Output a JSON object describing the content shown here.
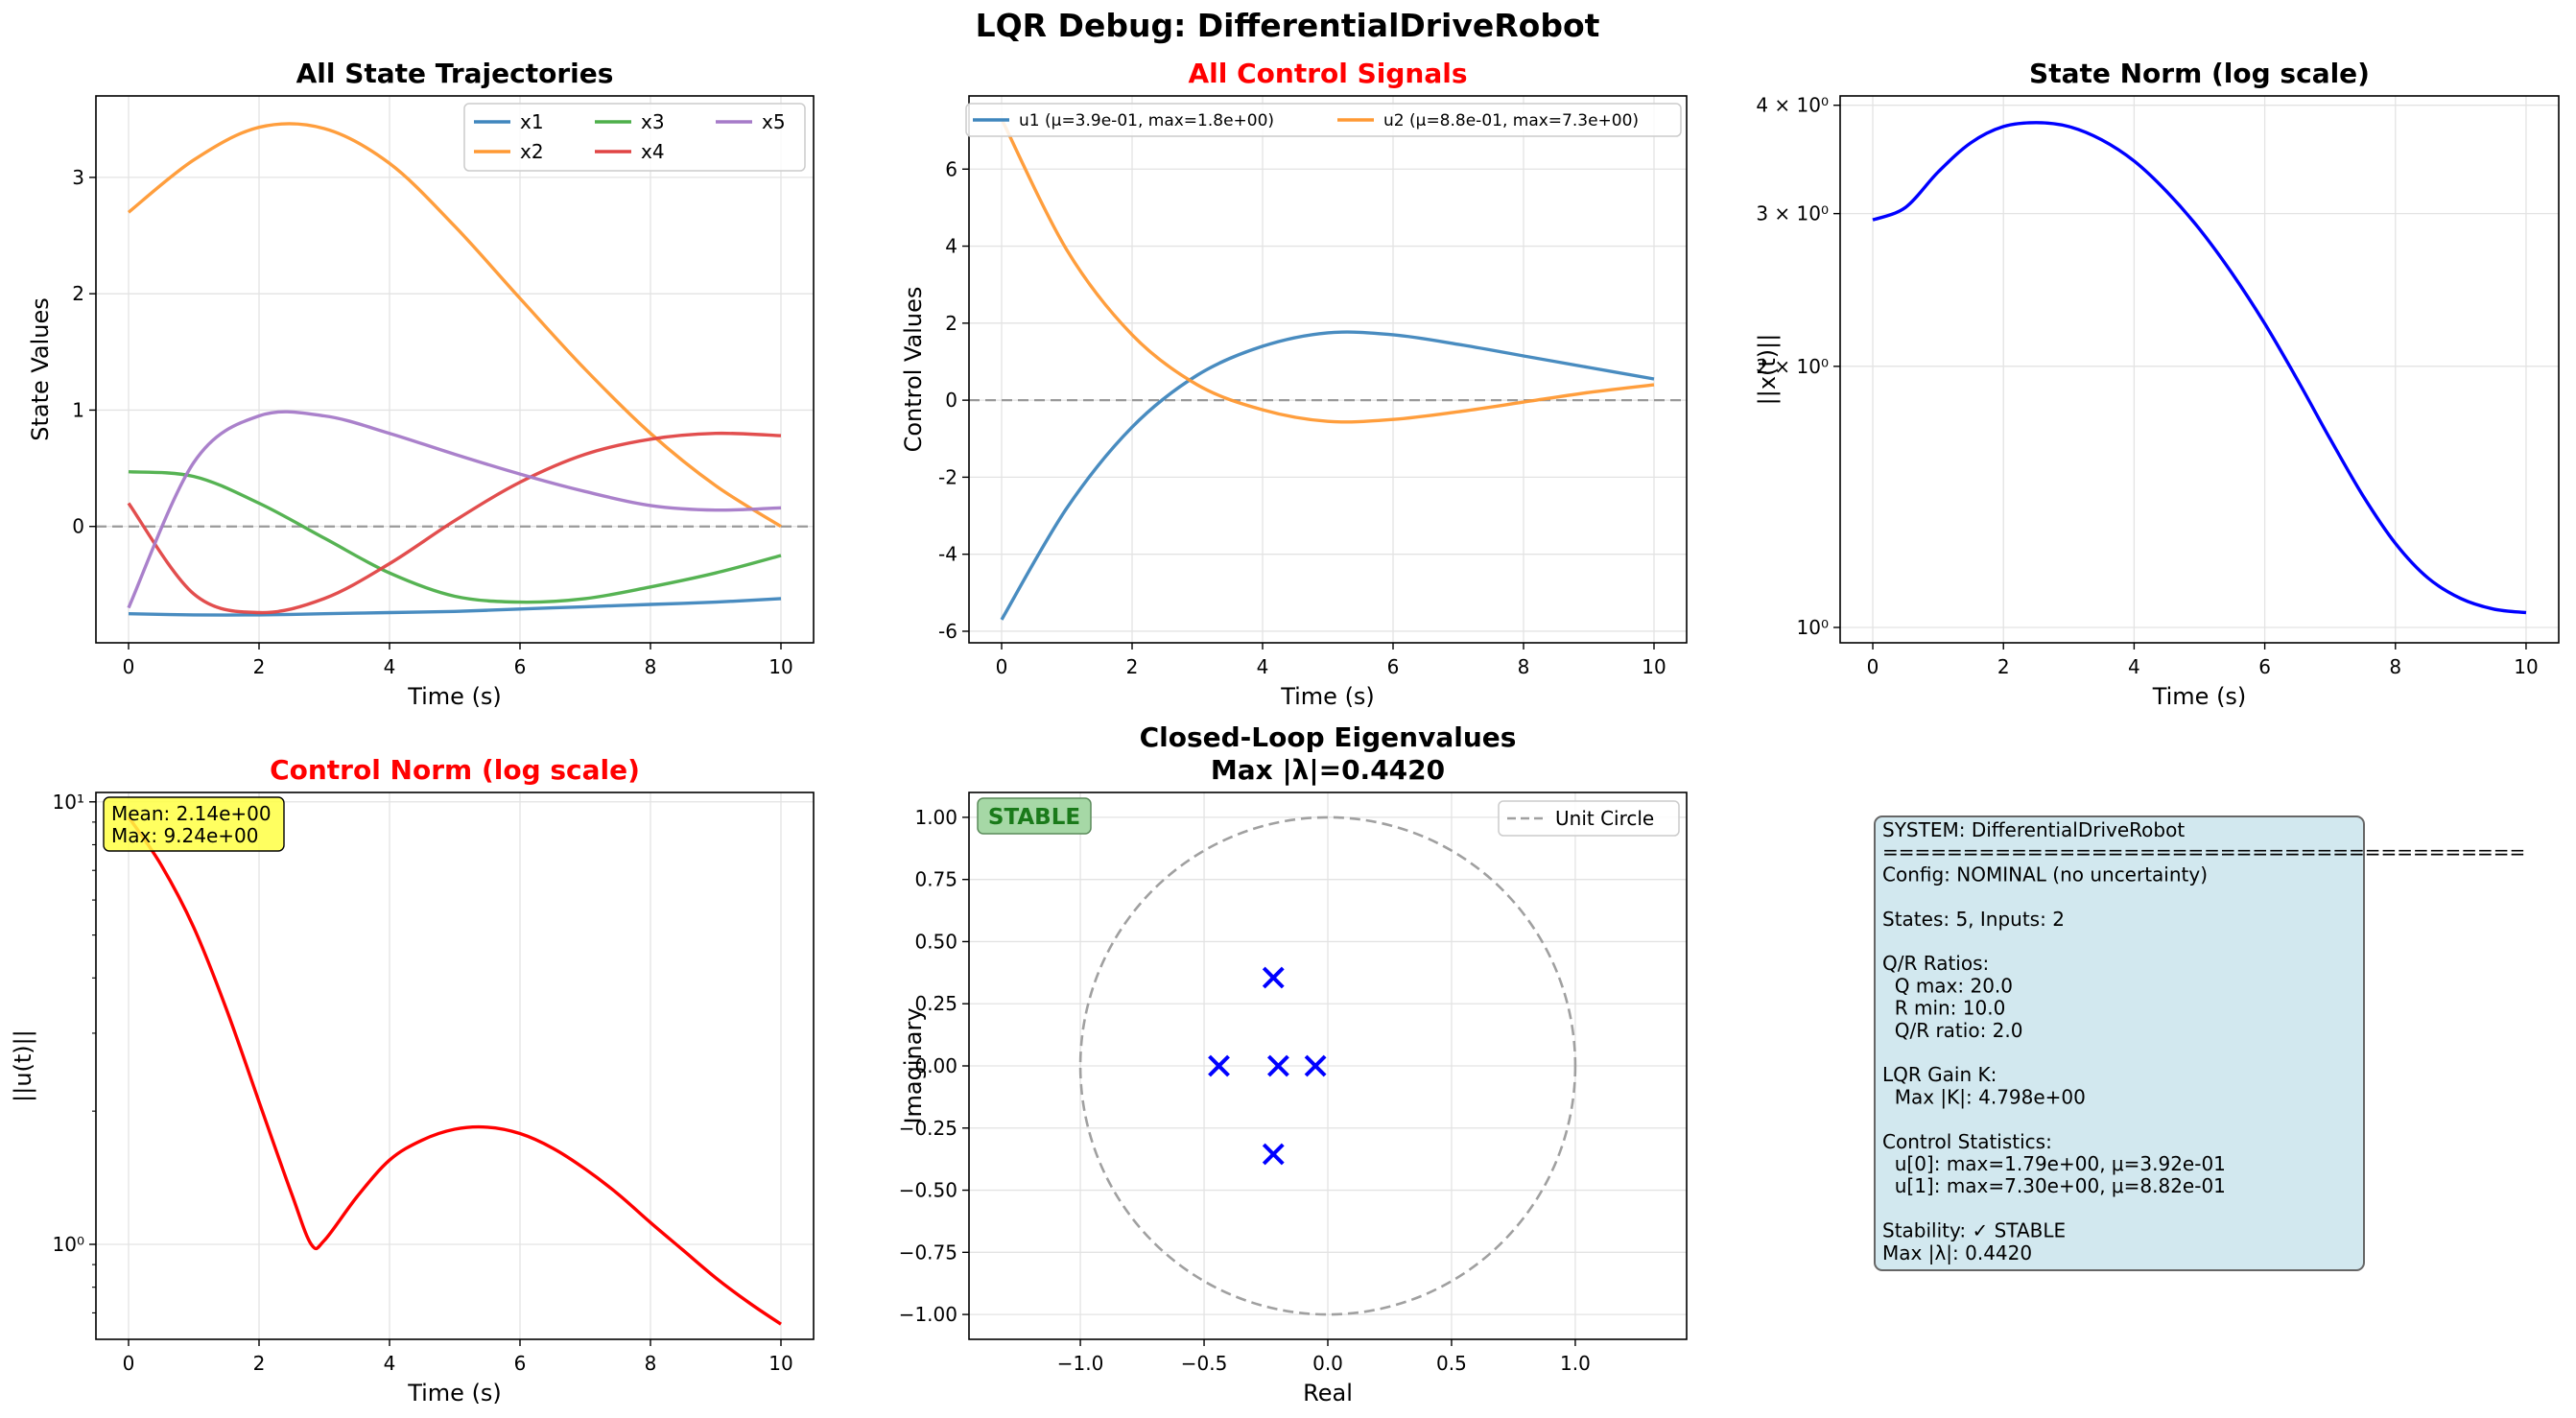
{
  "figure": {
    "suptitle": "LQR Debug: DifferentialDriveRobot"
  },
  "colors": {
    "x1": "#3f86bd",
    "x2": "#ff9933",
    "x3": "#4daf4a",
    "x4": "#e04444",
    "x5": "#a57ac8",
    "u1": "#3f86bd",
    "u2": "#ff9933",
    "norm_state": "#0000ff",
    "norm_control": "#ff0000",
    "eig_marker": "#0000ff",
    "title_red": "#ff0000",
    "stable_green": "#1a7a1a",
    "info_bg": "#d2e8ef"
  },
  "chart_data": [
    {
      "id": "state-trajectories",
      "type": "line",
      "title": "All State Trajectories",
      "xlabel": "Time (s)",
      "ylabel": "State Values",
      "xlim": [
        -0.5,
        10.5
      ],
      "ylim": [
        -1.0,
        3.7
      ],
      "xticks": [
        0,
        2,
        4,
        6,
        8,
        10
      ],
      "yticks": [
        0,
        1,
        2,
        3
      ],
      "grid": true,
      "legend": "top-right",
      "legend_columns": 3,
      "hline": 0,
      "x": [
        0,
        1,
        2,
        3,
        4,
        5,
        6,
        7,
        8,
        9,
        10
      ],
      "series": [
        {
          "name": "x1",
          "values": [
            -0.75,
            -0.76,
            -0.76,
            -0.75,
            -0.74,
            -0.73,
            -0.71,
            -0.69,
            -0.67,
            -0.65,
            -0.62
          ]
        },
        {
          "name": "x2",
          "values": [
            2.7,
            3.15,
            3.43,
            3.42,
            3.12,
            2.58,
            1.96,
            1.35,
            0.8,
            0.35,
            0.0
          ]
        },
        {
          "name": "x3",
          "values": [
            0.47,
            0.43,
            0.2,
            -0.1,
            -0.4,
            -0.6,
            -0.65,
            -0.62,
            -0.52,
            -0.4,
            -0.25
          ]
        },
        {
          "name": "x4",
          "values": [
            0.2,
            -0.58,
            -0.74,
            -0.62,
            -0.32,
            0.05,
            0.38,
            0.62,
            0.75,
            0.8,
            0.78
          ]
        },
        {
          "name": "x5",
          "values": [
            -0.7,
            0.55,
            0.95,
            0.95,
            0.8,
            0.62,
            0.45,
            0.3,
            0.18,
            0.14,
            0.16
          ]
        }
      ]
    },
    {
      "id": "control-signals",
      "type": "line",
      "title": "All Control Signals",
      "xlabel": "Time (s)",
      "ylabel": "Control Values",
      "xlim": [
        -0.5,
        10.5
      ],
      "ylim": [
        -6.3,
        7.9
      ],
      "xticks": [
        0,
        2,
        4,
        6,
        8,
        10
      ],
      "yticks": [
        -6,
        -4,
        -2,
        0,
        2,
        4,
        6
      ],
      "grid": true,
      "legend": "top",
      "legend_columns": 2,
      "hline": 0,
      "x": [
        0,
        1,
        2,
        3,
        4,
        5,
        6,
        7,
        8,
        9,
        10
      ],
      "series": [
        {
          "name": "u1 (μ=3.9e-01, max=1.8e+00)",
          "values": [
            -5.7,
            -2.8,
            -0.7,
            0.65,
            1.4,
            1.75,
            1.7,
            1.45,
            1.15,
            0.85,
            0.55
          ]
        },
        {
          "name": "u2 (μ=8.8e-01, max=7.3e+00)",
          "values": [
            7.3,
            3.9,
            1.7,
            0.4,
            -0.25,
            -0.55,
            -0.5,
            -0.3,
            -0.05,
            0.2,
            0.4
          ]
        }
      ]
    },
    {
      "id": "state-norm",
      "type": "line",
      "title": "State Norm (log scale)",
      "xlabel": "Time (s)",
      "ylabel": "||x(t)||",
      "yscale": "log",
      "xlim": [
        -0.5,
        10.5
      ],
      "ylim": [
        0.96,
        4.1
      ],
      "xticks": [
        0,
        2,
        4,
        6,
        8,
        10
      ],
      "ytick_labels": [
        "10⁰",
        "2 × 10⁰",
        "3 × 10⁰",
        "4 × 10⁰"
      ],
      "ytick_values": [
        1,
        2,
        3,
        4
      ],
      "grid": true,
      "x": [
        0,
        0.5,
        1,
        1.5,
        2,
        2.5,
        3,
        3.5,
        4,
        4.5,
        5,
        5.5,
        6,
        6.5,
        7,
        7.5,
        8,
        8.5,
        9,
        9.5,
        10
      ],
      "series": [
        {
          "name": "",
          "values": [
            2.95,
            3.05,
            3.35,
            3.62,
            3.78,
            3.82,
            3.78,
            3.65,
            3.45,
            3.18,
            2.88,
            2.56,
            2.24,
            1.93,
            1.65,
            1.42,
            1.25,
            1.14,
            1.08,
            1.05,
            1.04
          ]
        }
      ]
    },
    {
      "id": "control-norm",
      "type": "line",
      "title": "Control Norm (log scale)",
      "xlabel": "Time (s)",
      "ylabel": "||u(t)||",
      "yscale": "log",
      "xlim": [
        -0.5,
        10.5
      ],
      "ylim": [
        0.61,
        10.5
      ],
      "xticks": [
        0,
        2,
        4,
        6,
        8,
        10
      ],
      "ytick_labels": [
        "10⁰",
        "10¹"
      ],
      "ytick_values": [
        1,
        10
      ],
      "grid": true,
      "annotation": {
        "mean": "Mean: 2.14e+00",
        "max": "Max: 9.24e+00"
      },
      "x": [
        0,
        0.5,
        1,
        1.5,
        2,
        2.5,
        2.8,
        3,
        3.5,
        4,
        4.5,
        5,
        5.5,
        6,
        6.5,
        7,
        7.5,
        8,
        8.5,
        9,
        9.5,
        10
      ],
      "series": [
        {
          "name": "",
          "values": [
            9.24,
            7.2,
            5.2,
            3.4,
            2.1,
            1.3,
            1.0,
            1.02,
            1.28,
            1.55,
            1.72,
            1.82,
            1.84,
            1.78,
            1.65,
            1.48,
            1.3,
            1.12,
            0.97,
            0.84,
            0.74,
            0.66
          ]
        }
      ]
    },
    {
      "id": "eigenvalues",
      "type": "scatter",
      "title": "Closed-Loop Eigenvalues",
      "subtitle": "Max |λ|=0.4420",
      "xlabel": "Real",
      "ylabel": "Imaginary",
      "xlim": [
        -1.45,
        1.45
      ],
      "ylim": [
        -1.1,
        1.1
      ],
      "xticks": [
        -1.0,
        -0.5,
        0.0,
        0.5,
        1.0
      ],
      "xtick_labels": [
        "−1.0",
        "−0.5",
        "0.0",
        "0.5",
        "1.0"
      ],
      "yticks": [
        -1.0,
        -0.75,
        -0.5,
        -0.25,
        0.0,
        0.25,
        0.5,
        0.75,
        1.0
      ],
      "ytick_labels": [
        "−1.00",
        "−0.75",
        "−0.50",
        "−0.25",
        "0.00",
        "0.25",
        "0.50",
        "0.75",
        "1.00"
      ],
      "grid": true,
      "legend": "top-right",
      "legend_entries": [
        "Unit Circle"
      ],
      "badge": "STABLE",
      "points": [
        {
          "re": -0.44,
          "im": 0.0
        },
        {
          "re": -0.22,
          "im": 0.355
        },
        {
          "re": -0.22,
          "im": -0.355
        },
        {
          "re": -0.2,
          "im": 0.0
        },
        {
          "re": -0.05,
          "im": 0.0
        }
      ]
    }
  ],
  "info_panel": {
    "lines": [
      "SYSTEM: DifferentialDriveRobot",
      "========================================",
      "Config: NOMINAL (no uncertainty)",
      "",
      "States: 5, Inputs: 2",
      "",
      "Q/R Ratios:",
      "  Q max: 20.0",
      "  R min: 10.0",
      "  Q/R ratio: 2.0",
      "",
      "LQR Gain K:",
      "  Max |K|: 4.798e+00",
      "",
      "Control Statistics:",
      "  u[0]: max=1.79e+00, μ=3.92e-01",
      "  u[1]: max=7.30e+00, μ=8.82e-01",
      "",
      "Stability: ✓ STABLE",
      "Max |λ|: 0.4420"
    ]
  }
}
